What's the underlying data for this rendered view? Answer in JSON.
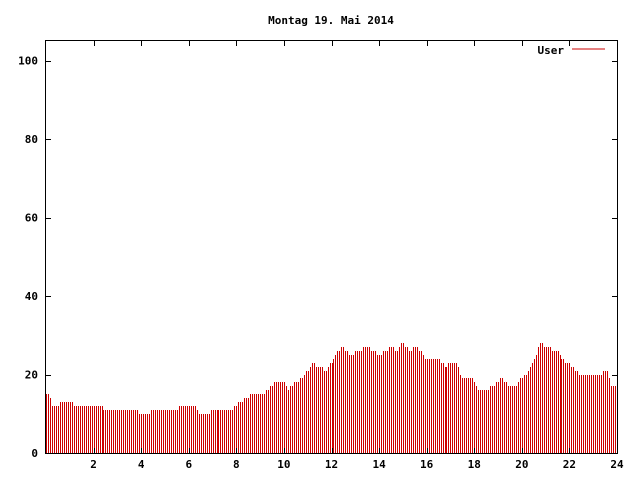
{
  "chart_data": {
    "type": "bar",
    "title": "Montag 19. Mai 2014",
    "xlabel": "",
    "ylabel": "",
    "xlim": [
      0,
      24
    ],
    "ylim": [
      0,
      105
    ],
    "x_ticks": [
      2,
      4,
      6,
      8,
      10,
      12,
      14,
      16,
      18,
      20,
      22,
      24
    ],
    "x_tick_labels": [
      "2",
      "4",
      "6",
      "8",
      "10",
      "12",
      "14",
      "16",
      "18",
      "20",
      "22",
      "24"
    ],
    "y_ticks": [
      0,
      20,
      40,
      60,
      80,
      100
    ],
    "y_tick_labels": [
      "0",
      "20",
      "40",
      "60",
      "80",
      "100"
    ],
    "grid": false,
    "legend_position": "top-right",
    "series": [
      {
        "name": "User",
        "color": "#cc0000",
        "keyframes": [
          [
            0.0,
            15
          ],
          [
            0.15,
            15
          ],
          [
            0.3,
            12
          ],
          [
            0.5,
            12
          ],
          [
            0.6,
            13
          ],
          [
            1.0,
            13
          ],
          [
            1.4,
            12
          ],
          [
            2.3,
            12
          ],
          [
            2.5,
            11
          ],
          [
            3.8,
            11
          ],
          [
            4.0,
            10
          ],
          [
            4.3,
            10
          ],
          [
            4.5,
            11
          ],
          [
            5.5,
            11
          ],
          [
            5.7,
            12
          ],
          [
            6.3,
            12
          ],
          [
            6.5,
            10
          ],
          [
            6.8,
            10
          ],
          [
            7.0,
            11
          ],
          [
            7.8,
            11
          ],
          [
            8.0,
            12
          ],
          [
            8.4,
            14
          ],
          [
            8.8,
            15
          ],
          [
            9.2,
            15
          ],
          [
            9.5,
            17
          ],
          [
            9.7,
            18
          ],
          [
            10.0,
            18
          ],
          [
            10.2,
            16
          ],
          [
            10.5,
            18
          ],
          [
            10.8,
            19
          ],
          [
            11.0,
            21
          ],
          [
            11.2,
            23
          ],
          [
            11.5,
            22
          ],
          [
            11.8,
            21
          ],
          [
            12.0,
            23
          ],
          [
            12.3,
            26
          ],
          [
            12.5,
            27
          ],
          [
            12.8,
            25
          ],
          [
            13.2,
            26
          ],
          [
            13.5,
            27
          ],
          [
            14.0,
            25
          ],
          [
            14.3,
            26
          ],
          [
            14.5,
            27
          ],
          [
            14.8,
            26
          ],
          [
            15.0,
            28
          ],
          [
            15.3,
            26
          ],
          [
            15.5,
            27
          ],
          [
            15.8,
            26
          ],
          [
            16.0,
            24
          ],
          [
            16.5,
            24
          ],
          [
            16.8,
            22
          ],
          [
            17.0,
            23
          ],
          [
            17.3,
            23
          ],
          [
            17.5,
            19
          ],
          [
            18.0,
            19
          ],
          [
            18.2,
            16
          ],
          [
            18.6,
            16
          ],
          [
            18.8,
            17
          ],
          [
            19.2,
            19
          ],
          [
            19.5,
            17
          ],
          [
            19.8,
            17
          ],
          [
            20.0,
            19
          ],
          [
            20.3,
            21
          ],
          [
            20.6,
            25
          ],
          [
            20.8,
            28
          ],
          [
            21.0,
            27
          ],
          [
            21.5,
            26
          ],
          [
            21.7,
            24
          ],
          [
            22.0,
            23
          ],
          [
            22.3,
            21
          ],
          [
            22.6,
            20
          ],
          [
            22.9,
            20
          ],
          [
            23.3,
            20
          ],
          [
            23.6,
            21
          ],
          [
            23.8,
            17
          ],
          [
            24.0,
            17
          ]
        ]
      }
    ]
  }
}
